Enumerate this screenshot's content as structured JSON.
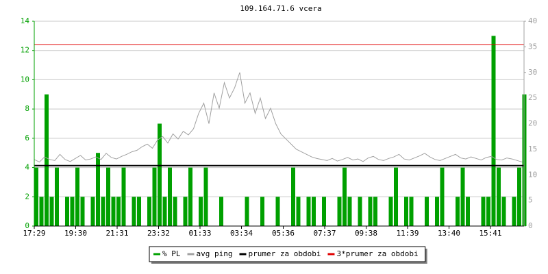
{
  "chart_data": {
    "type": "combo",
    "title": "109.164.71.6 vcera",
    "x": [
      0,
      15,
      30,
      45,
      60,
      75,
      90,
      105,
      120,
      135,
      150,
      165,
      180,
      195,
      210,
      225,
      240,
      255,
      270,
      285,
      300,
      315,
      330,
      345,
      360,
      375,
      390,
      405,
      420,
      435,
      450,
      465,
      480,
      495,
      510,
      525,
      540,
      555,
      570,
      585,
      600,
      615,
      630,
      645,
      660,
      675,
      690,
      705,
      720,
      735,
      750,
      765,
      780,
      795,
      810,
      825,
      840,
      855,
      870,
      885,
      900,
      915,
      930,
      945,
      960,
      975,
      990,
      1005,
      1020,
      1035,
      1050,
      1065,
      1080,
      1095,
      1110,
      1125,
      1140,
      1155,
      1170,
      1185,
      1200,
      1215,
      1230,
      1245,
      1260,
      1275,
      1290,
      1305,
      1320,
      1335,
      1350,
      1365,
      1380,
      1395,
      1410,
      1425
    ],
    "xlim": [
      0,
      1430
    ],
    "xticks": [
      {
        "value": 0,
        "label": "17:29"
      },
      {
        "value": 121,
        "label": "19:30"
      },
      {
        "value": 242,
        "label": "21:31"
      },
      {
        "value": 363,
        "label": "23:32"
      },
      {
        "value": 484,
        "label": "01:33"
      },
      {
        "value": 605,
        "label": "03:34"
      },
      {
        "value": 727,
        "label": "05:36"
      },
      {
        "value": 848,
        "label": "07:37"
      },
      {
        "value": 969,
        "label": "09:38"
      },
      {
        "value": 1090,
        "label": "11:39"
      },
      {
        "value": 1211,
        "label": "13:40"
      },
      {
        "value": 1332,
        "label": "15:41"
      }
    ],
    "ylim": [
      0,
      14
    ],
    "yticks": [
      0,
      2,
      4,
      6,
      8,
      10,
      12,
      14
    ],
    "y2lim": [
      0,
      40
    ],
    "y2ticks": [
      0,
      5,
      10,
      15,
      20,
      25,
      30,
      35,
      40
    ],
    "grid": true,
    "series": [
      {
        "name": "% PL",
        "type": "bar",
        "color": "#00a000",
        "values": [
          4,
          2,
          9,
          2,
          4,
          0,
          2,
          2,
          4,
          2,
          0,
          2,
          5,
          2,
          4,
          2,
          2,
          4,
          0,
          2,
          2,
          0,
          2,
          4,
          7,
          2,
          4,
          2,
          0,
          2,
          4,
          0,
          2,
          4,
          0,
          0,
          2,
          0,
          0,
          0,
          0,
          2,
          0,
          0,
          2,
          0,
          0,
          2,
          0,
          0,
          4,
          2,
          0,
          2,
          2,
          0,
          2,
          0,
          0,
          2,
          4,
          2,
          0,
          2,
          0,
          2,
          2,
          0,
          0,
          2,
          4,
          0,
          2,
          2,
          0,
          0,
          2,
          0,
          2,
          4,
          0,
          0,
          2,
          4,
          2,
          0,
          0,
          2,
          2,
          13,
          4,
          2,
          0,
          2,
          4,
          9
        ]
      },
      {
        "name": "avg ping",
        "type": "line",
        "axis": "y2",
        "color": "#a0a0a0",
        "values": [
          13,
          12.5,
          13.5,
          13,
          12.8,
          14,
          13,
          12.6,
          13.2,
          13.8,
          12.9,
          13.1,
          13.5,
          13,
          14.2,
          13.4,
          13.1,
          13.6,
          14,
          14.5,
          14.8,
          15.5,
          16,
          15.2,
          16.8,
          17.5,
          16.2,
          18,
          17,
          18.5,
          17.8,
          19,
          22,
          24,
          20,
          26,
          23,
          28,
          25,
          27,
          30,
          24,
          26,
          22,
          25,
          21,
          23,
          20,
          18,
          17,
          16,
          15,
          14.5,
          14,
          13.5,
          13.2,
          13,
          12.8,
          13.2,
          12.7,
          13,
          13.4,
          12.9,
          13.1,
          12.6,
          13.3,
          13.6,
          13,
          12.8,
          13.2,
          13.5,
          14,
          13.1,
          12.9,
          13.3,
          13.7,
          14.2,
          13.5,
          13,
          12.8,
          13.2,
          13.6,
          14,
          13.3,
          13.1,
          13.5,
          13.2,
          12.9,
          13.4,
          13.6,
          13,
          12.9,
          13.3,
          13.1,
          12.8,
          12.5
        ]
      },
      {
        "name": "prumer za obdobi",
        "type": "hline",
        "color": "#000000",
        "value": 4.13
      },
      {
        "name": "3*prumer za obdobi",
        "type": "hline",
        "color": "#e00000",
        "value": 12.4
      }
    ]
  }
}
